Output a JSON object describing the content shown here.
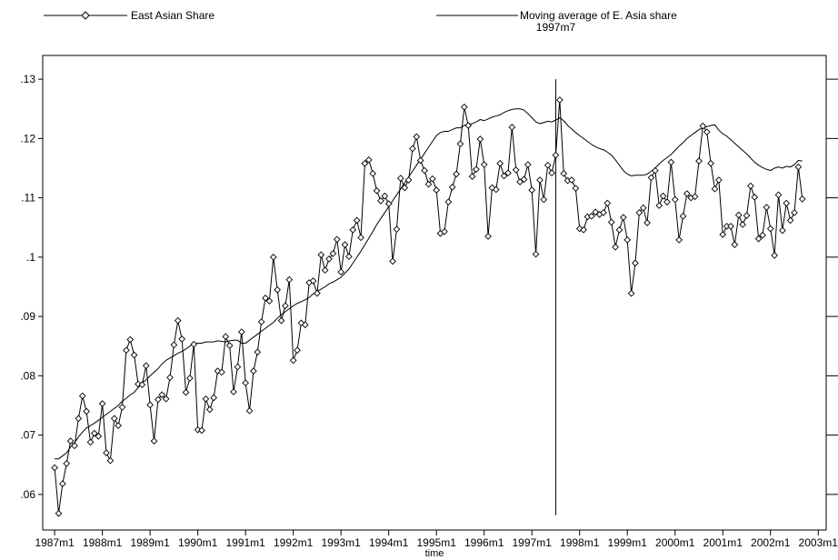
{
  "chart_data": {
    "type": "line",
    "title": "",
    "xlabel": "time",
    "ylabel": "",
    "legend_position": "top",
    "x_ticks": [
      "1987m1",
      "1988m1",
      "1989m1",
      "1990m1",
      "1991m1",
      "1992m1",
      "1993m1",
      "1994m1",
      "1995m1",
      "1996m1",
      "1997m1",
      "1998m1",
      "1999m1",
      "2000m1",
      "2001m1",
      "2002m1",
      "2003m1"
    ],
    "y_ticks": [
      ".06",
      ".07",
      ".08",
      ".09",
      ".1",
      ".11",
      ".12",
      ".13"
    ],
    "ylim": [
      0.054,
      0.134
    ],
    "xlim": [
      "1986m10",
      "2003m3"
    ],
    "x_start": "1987m1",
    "x_step": "1 month",
    "vline": {
      "x": "1997m7",
      "label": "1997m7",
      "ymin": 0.0565,
      "ymax": 0.13
    },
    "series": [
      {
        "name": "East Asian Share",
        "marker": "diamond",
        "values": [
          0.0645,
          0.0568,
          0.0618,
          0.0652,
          0.069,
          0.0682,
          0.0728,
          0.0766,
          0.074,
          0.0688,
          0.0703,
          0.0698,
          0.0753,
          0.067,
          0.0657,
          0.0728,
          0.0716,
          0.0747,
          0.0843,
          0.0861,
          0.0835,
          0.0786,
          0.0785,
          0.0817,
          0.0751,
          0.069,
          0.076,
          0.0768,
          0.0761,
          0.0797,
          0.0852,
          0.0893,
          0.0862,
          0.0772,
          0.0796,
          0.0853,
          0.0709,
          0.0708,
          0.0761,
          0.0743,
          0.0763,
          0.0808,
          0.0806,
          0.0866,
          0.0851,
          0.0773,
          0.0815,
          0.0874,
          0.0788,
          0.0741,
          0.0808,
          0.084,
          0.0891,
          0.0931,
          0.0926,
          0.1,
          0.0945,
          0.0893,
          0.0918,
          0.0962,
          0.0826,
          0.0843,
          0.0889,
          0.0886,
          0.0957,
          0.096,
          0.0939,
          0.1004,
          0.0978,
          0.0997,
          0.1006,
          0.103,
          0.0975,
          0.1021,
          0.1001,
          0.1046,
          0.1062,
          0.1033,
          0.1158,
          0.1164,
          0.1141,
          0.1112,
          0.1095,
          0.1103,
          0.109,
          0.0993,
          0.1047,
          0.1133,
          0.1117,
          0.113,
          0.1183,
          0.1203,
          0.1163,
          0.1146,
          0.1123,
          0.1132,
          0.1113,
          0.104,
          0.1043,
          0.1093,
          0.1118,
          0.114,
          0.1191,
          0.1253,
          0.1222,
          0.1136,
          0.1148,
          0.1199,
          0.1156,
          0.1035,
          0.1117,
          0.1114,
          0.1158,
          0.1137,
          0.1142,
          0.1219,
          0.1147,
          0.1127,
          0.1131,
          0.1156,
          0.1113,
          0.1005,
          0.113,
          0.1097,
          0.1155,
          0.1142,
          0.1172,
          0.1265,
          0.1141,
          0.1129,
          0.113,
          0.1116,
          0.1048,
          0.1046,
          0.1068,
          0.1069,
          0.1076,
          0.1072,
          0.1075,
          0.1091,
          0.1059,
          0.1017,
          0.1046,
          0.1067,
          0.1029,
          0.0939,
          0.099,
          0.1075,
          0.1083,
          0.1058,
          0.1134,
          0.1146,
          0.1087,
          0.1103,
          0.1093,
          0.116,
          0.1097,
          0.1029,
          0.1069,
          0.1107,
          0.11,
          0.1102,
          0.1162,
          0.1221,
          0.1211,
          0.1158,
          0.1115,
          0.113,
          0.1038,
          0.1052,
          0.1052,
          0.1021,
          0.1071,
          0.1055,
          0.107,
          0.112,
          0.1101,
          0.1031,
          0.1037,
          0.1084,
          0.1048,
          0.1003,
          0.1105,
          0.1045,
          0.1091,
          0.1062,
          0.1075,
          0.1152,
          0.1098
        ]
      },
      {
        "name": "Moving average of E. Asia share",
        "marker": "none",
        "values": [
          0.066,
          0.066,
          0.0665,
          0.067,
          0.068,
          0.0687,
          0.0697,
          0.0705,
          0.0712,
          0.0716,
          0.072,
          0.0725,
          0.073,
          0.0735,
          0.074,
          0.0745,
          0.075,
          0.0757,
          0.0762,
          0.0768,
          0.0772,
          0.078,
          0.0788,
          0.0793,
          0.08,
          0.0806,
          0.0812,
          0.082,
          0.0826,
          0.083,
          0.0834,
          0.0838,
          0.0841,
          0.0845,
          0.085,
          0.0854,
          0.0855,
          0.0855,
          0.0857,
          0.0857,
          0.0857,
          0.0859,
          0.0858,
          0.0857,
          0.0859,
          0.086,
          0.086,
          0.0855,
          0.0855,
          0.086,
          0.0865,
          0.087,
          0.0875,
          0.088,
          0.0885,
          0.089,
          0.0897,
          0.0903,
          0.0908,
          0.0913,
          0.0918,
          0.0922,
          0.0925,
          0.0928,
          0.0932,
          0.0938,
          0.0942,
          0.0946,
          0.095,
          0.0955,
          0.0958,
          0.0962,
          0.0966,
          0.0973,
          0.098,
          0.099,
          0.1,
          0.101,
          0.1021,
          0.1032,
          0.1043,
          0.1055,
          0.1065,
          0.1075,
          0.1085,
          0.1095,
          0.1105,
          0.1115,
          0.1125,
          0.1135,
          0.1145,
          0.1155,
          0.1165,
          0.1175,
          0.1185,
          0.1195,
          0.1205,
          0.121,
          0.1212,
          0.1212,
          0.1215,
          0.1218,
          0.1218,
          0.1222,
          0.1224,
          0.1225,
          0.1228,
          0.1232,
          0.123,
          0.1233,
          0.1236,
          0.1238,
          0.124,
          0.1244,
          0.1247,
          0.1249,
          0.125,
          0.125,
          0.1248,
          0.1242,
          0.1235,
          0.1228,
          0.1225,
          0.1227,
          0.1229,
          0.1228,
          0.1231,
          0.1235,
          0.123,
          0.1222,
          0.1216,
          0.121,
          0.1205,
          0.12,
          0.1195,
          0.119,
          0.1186,
          0.1183,
          0.1181,
          0.1177,
          0.1172,
          0.1164,
          0.1155,
          0.1146,
          0.114,
          0.1137,
          0.1138,
          0.1138,
          0.1138,
          0.114,
          0.1145,
          0.115,
          0.1157,
          0.1163,
          0.1168,
          0.1173,
          0.118,
          0.1187,
          0.1193,
          0.12,
          0.1205,
          0.121,
          0.1215,
          0.1218,
          0.122,
          0.1222,
          0.1223,
          0.1214,
          0.1208,
          0.1204,
          0.1198,
          0.1192,
          0.1186,
          0.118,
          0.1174,
          0.1167,
          0.116,
          0.1155,
          0.1151,
          0.1148,
          0.1146,
          0.115,
          0.1152,
          0.115,
          0.1153,
          0.1152,
          0.1156,
          0.1163,
          0.1162
        ]
      }
    ]
  }
}
